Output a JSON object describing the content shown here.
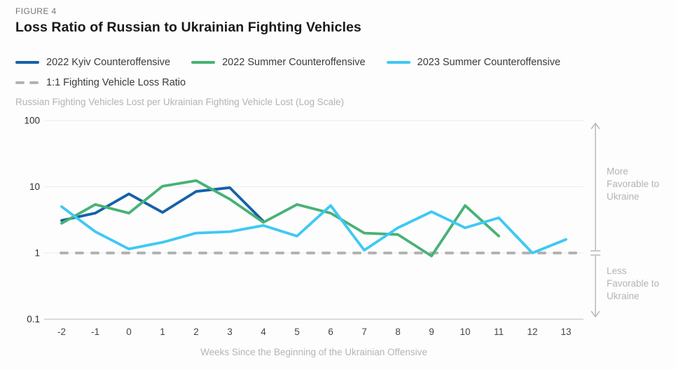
{
  "header": {
    "figure_label": "FIGURE 4",
    "title": "Loss Ratio of Russian to Ukrainian Fighting Vehicles"
  },
  "annotations": {
    "more_label": "More Favorable to Ukraine",
    "less_label": "Less Favorable to Ukraine"
  },
  "colors": {
    "kyiv_2022": "#1661a9",
    "summer_2022": "#47b275",
    "summer_2023": "#3fc8f4",
    "reference_gray": "#b3b3b3",
    "gridline": "#ececec",
    "axis_line": "#c9c9c9",
    "muted_text": "#b4b4b4",
    "tick_text": "#454545"
  },
  "chart_data": {
    "type": "line",
    "log_scale": true,
    "title": "Loss Ratio of Russian to Ukrainian Fighting Vehicles",
    "xlabel": "Weeks Since the Beginning of the Ukrainian Offensive",
    "ylabel": "Russian Fighting Vehicles Lost per Ukrainian Fighting Vehicle Lost (Log Scale)",
    "ylim": [
      0.1,
      100
    ],
    "y_ticks": [
      100,
      10,
      1,
      0.1
    ],
    "x_ticks": [
      -2,
      -1,
      0,
      1,
      2,
      3,
      4,
      5,
      6,
      7,
      8,
      9,
      10,
      11,
      12,
      13
    ],
    "grid": true,
    "legend_position": "top",
    "reference_line": {
      "label": "1:1 Fighting Vehicle Loss Ratio",
      "value": 1,
      "style": "dashed",
      "color": "#b3b3b3"
    },
    "series": [
      {
        "name": "2022 Kyiv Counteroffensive",
        "color": "#1661a9",
        "x_start": -2,
        "x": [
          -2,
          -1,
          0,
          1,
          2,
          3,
          4
        ],
        "values": [
          3.1,
          4.0,
          7.8,
          4.1,
          8.5,
          9.7,
          3.0
        ]
      },
      {
        "name": "2022 Summer Counteroffensive",
        "color": "#47b275",
        "x_start": -2,
        "x": [
          -2,
          -1,
          0,
          1,
          2,
          3,
          4,
          5,
          6,
          7,
          8,
          9,
          10,
          11
        ],
        "values": [
          2.8,
          5.4,
          4.0,
          10.2,
          12.4,
          6.5,
          2.9,
          5.4,
          4.0,
          2.0,
          1.9,
          0.9,
          5.2,
          1.8
        ]
      },
      {
        "name": "2023 Summer Counteroffensive",
        "color": "#3fc8f4",
        "x_start": -2,
        "x": [
          -2,
          -1,
          0,
          1,
          2,
          3,
          4,
          5,
          6,
          7,
          8,
          9,
          10,
          11,
          12,
          13
        ],
        "values": [
          5.0,
          2.1,
          1.15,
          1.45,
          2.0,
          2.1,
          2.6,
          1.8,
          5.2,
          1.1,
          2.4,
          4.2,
          2.4,
          3.4,
          1.0,
          1.6
        ]
      }
    ]
  }
}
